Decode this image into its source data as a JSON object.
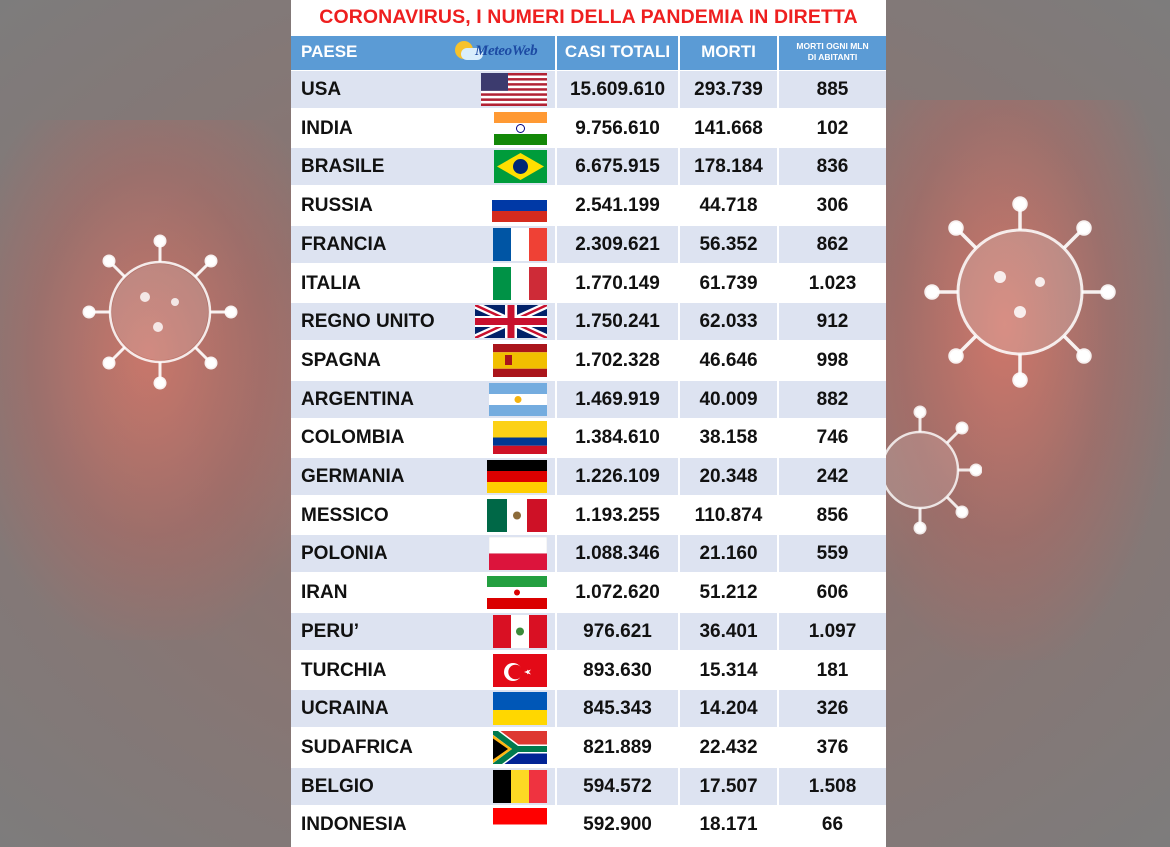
{
  "title": "CORONAVIRUS, I NUMERI DELLA PANDEMIA IN DIRETTA",
  "header": {
    "country": "PAESE",
    "cases": "CASI TOTALI",
    "deaths": "MORTI",
    "per_mln_line1": "MORTI OGNI MLN",
    "per_mln_line2": "DI ABITANTI",
    "logo": "MeteoWeb"
  },
  "rows": [
    {
      "country": "USA",
      "cases": "15.609.610",
      "deaths": "293.739",
      "per_mln": "885",
      "flag": "usa"
    },
    {
      "country": "INDIA",
      "cases": "9.756.610",
      "deaths": "141.668",
      "per_mln": "102",
      "flag": "india"
    },
    {
      "country": "BRASILE",
      "cases": "6.675.915",
      "deaths": "178.184",
      "per_mln": "836",
      "flag": "brazil"
    },
    {
      "country": "RUSSIA",
      "cases": "2.541.199",
      "deaths": "44.718",
      "per_mln": "306",
      "flag": "russia"
    },
    {
      "country": "FRANCIA",
      "cases": "2.309.621",
      "deaths": "56.352",
      "per_mln": "862",
      "flag": "france"
    },
    {
      "country": "ITALIA",
      "cases": "1.770.149",
      "deaths": "61.739",
      "per_mln": "1.023",
      "flag": "italy"
    },
    {
      "country": "REGNO UNITO",
      "cases": "1.750.241",
      "deaths": "62.033",
      "per_mln": "912",
      "flag": "uk"
    },
    {
      "country": "SPAGNA",
      "cases": "1.702.328",
      "deaths": "46.646",
      "per_mln": "998",
      "flag": "spain"
    },
    {
      "country": "ARGENTINA",
      "cases": "1.469.919",
      "deaths": "40.009",
      "per_mln": "882",
      "flag": "argentina"
    },
    {
      "country": "COLOMBIA",
      "cases": "1.384.610",
      "deaths": "38.158",
      "per_mln": "746",
      "flag": "colombia"
    },
    {
      "country": "GERMANIA",
      "cases": "1.226.109",
      "deaths": "20.348",
      "per_mln": "242",
      "flag": "germany"
    },
    {
      "country": "MESSICO",
      "cases": "1.193.255",
      "deaths": "110.874",
      "per_mln": "856",
      "flag": "mexico"
    },
    {
      "country": "POLONIA",
      "cases": "1.088.346",
      "deaths": "21.160",
      "per_mln": "559",
      "flag": "poland"
    },
    {
      "country": "IRAN",
      "cases": "1.072.620",
      "deaths": "51.212",
      "per_mln": "606",
      "flag": "iran"
    },
    {
      "country": "PERU’",
      "cases": "976.621",
      "deaths": "36.401",
      "per_mln": "1.097",
      "flag": "peru"
    },
    {
      "country": "TURCHIA",
      "cases": "893.630",
      "deaths": "15.314",
      "per_mln": "181",
      "flag": "turkey"
    },
    {
      "country": "UCRAINA",
      "cases": "845.343",
      "deaths": "14.204",
      "per_mln": "326",
      "flag": "ukraine"
    },
    {
      "country": "SUDAFRICA",
      "cases": "821.889",
      "deaths": "22.432",
      "per_mln": "376",
      "flag": "south-africa"
    },
    {
      "country": "BELGIO",
      "cases": "594.572",
      "deaths": "17.507",
      "per_mln": "1.508",
      "flag": "belgium"
    },
    {
      "country": "INDONESIA",
      "cases": "592.900",
      "deaths": "18.171",
      "per_mln": "66",
      "flag": "indonesia"
    }
  ]
}
